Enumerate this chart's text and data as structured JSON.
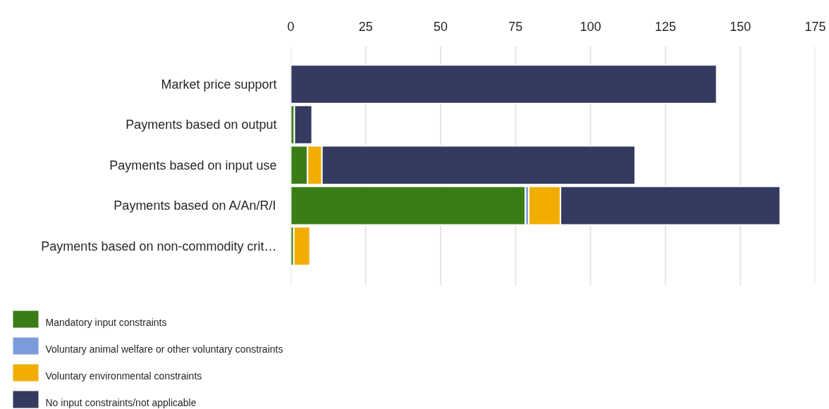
{
  "chart_data": {
    "type": "bar",
    "orientation": "horizontal",
    "stacked": true,
    "categories": [
      "Market price support",
      "Payments based on output",
      "Payments based on input use",
      "Payments based on A/An/R/I",
      "Payments based on non-commodity crit…"
    ],
    "series": [
      {
        "name": "Mandatory input constraints",
        "color": "#3a7d16",
        "values": [
          null,
          1.2,
          5.6,
          78.3,
          1.0
        ]
      },
      {
        "name": "Voluntary animal welfare or other voluntary constraints",
        "color": "#7b9bdc",
        "values": [
          null,
          null,
          null,
          1.1,
          null
        ]
      },
      {
        "name": "Voluntary environmental constraints",
        "color": "#f2ae00",
        "values": [
          null,
          null,
          4.8,
          10.6,
          5.4
        ]
      },
      {
        "name": "No input constraints/not applicable",
        "color": "#343a60",
        "values": [
          142.1,
          5.9,
          104.5,
          73.3,
          null
        ]
      }
    ],
    "xlim": [
      0,
      175
    ],
    "xticks": [
      0,
      25,
      50,
      75,
      100,
      125,
      150,
      175
    ],
    "grid": "x",
    "legend": "bottom left"
  }
}
